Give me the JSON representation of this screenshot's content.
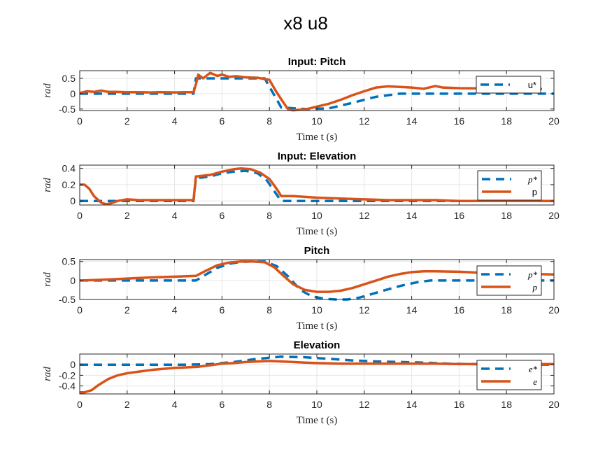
{
  "figure_title": "x8  u8",
  "colors": {
    "reference": "#0072BD",
    "actual": "#D95319"
  },
  "chart_data": [
    {
      "type": "line",
      "title": "Input: Pitch",
      "xlabel": "Time t (s)",
      "ylabel": "rad",
      "xlim": [
        0,
        20
      ],
      "ylim": [
        -0.55,
        0.75
      ],
      "xticks": [
        0,
        2,
        4,
        6,
        8,
        10,
        12,
        14,
        16,
        18,
        20
      ],
      "yticks": [
        0.5,
        0,
        -0.5
      ],
      "ytick_labels": [
        "0.5",
        "0",
        "-0.5"
      ],
      "grid": true,
      "legend_position": "top-right",
      "series": [
        {
          "name": "u*",
          "style": "dashed",
          "x": [
            0,
            4.8,
            4.9,
            7.8,
            8.5,
            9.5,
            10.5,
            11.5,
            12.5,
            13.5,
            15,
            20
          ],
          "y": [
            0,
            0,
            0.5,
            0.5,
            -0.45,
            -0.5,
            -0.48,
            -0.3,
            -0.1,
            0,
            0,
            0
          ]
        },
        {
          "name": "",
          "style": "solid",
          "x": [
            0,
            0.3,
            0.6,
            0.9,
            1.2,
            1.5,
            2,
            2.5,
            3,
            3.3,
            3.6,
            4,
            4.4,
            4.8,
            4.9,
            5.0,
            5.2,
            5.5,
            5.8,
            6.0,
            6.3,
            6.6,
            7,
            7.5,
            8,
            8.3,
            8.6,
            8.8,
            9.0,
            9.3,
            9.6,
            10,
            10.5,
            11,
            11.5,
            12,
            12.5,
            13,
            13.5,
            14,
            14.5,
            15,
            15.3,
            16,
            17,
            18,
            19,
            19.5
          ],
          "y": [
            0.02,
            0.08,
            0.06,
            0.1,
            0.06,
            0.06,
            0.05,
            0.05,
            0.04,
            0.05,
            0.05,
            0.04,
            0.05,
            0.05,
            0.3,
            0.62,
            0.5,
            0.68,
            0.58,
            0.62,
            0.55,
            0.57,
            0.53,
            0.52,
            0.45,
            0.05,
            -0.3,
            -0.52,
            -0.54,
            -0.52,
            -0.5,
            -0.42,
            -0.33,
            -0.2,
            -0.05,
            0.08,
            0.2,
            0.24,
            0.22,
            0.2,
            0.16,
            0.25,
            0.2,
            0.18,
            0.17,
            0.16,
            0.15,
            0.15
          ]
        }
      ]
    },
    {
      "type": "line",
      "title": "Input: Elevation",
      "xlabel": "Time t (s)",
      "ylabel": "rad",
      "xlim": [
        0,
        20
      ],
      "ylim": [
        -0.05,
        0.44
      ],
      "xticks": [
        0,
        2,
        4,
        6,
        8,
        10,
        12,
        14,
        16,
        18,
        20
      ],
      "yticks": [
        0.4,
        0.2,
        0
      ],
      "ytick_labels": [
        "0.4",
        "0.2",
        "0"
      ],
      "grid": true,
      "legend_position": "top-right",
      "series": [
        {
          "name": "p*",
          "style": "dashed",
          "x": [
            0,
            4.8,
            4.9,
            5.5,
            6.0,
            6.5,
            7.0,
            7.5,
            7.9,
            8.3,
            8.5,
            20
          ],
          "y": [
            0,
            0,
            0.28,
            0.3,
            0.34,
            0.36,
            0.37,
            0.34,
            0.25,
            0.08,
            0,
            0
          ]
        },
        {
          "name": "p",
          "style": "solid",
          "x": [
            0,
            0.2,
            0.4,
            0.6,
            0.9,
            1.1,
            1.3,
            1.6,
            2,
            2.5,
            3,
            3.5,
            4,
            4.8,
            4.9,
            5.5,
            6.0,
            6.5,
            6.8,
            7.2,
            7.6,
            8.0,
            8.3,
            8.5,
            9,
            9.5,
            10,
            11,
            12,
            13,
            14,
            15,
            16,
            17,
            18,
            19,
            20
          ],
          "y": [
            0.2,
            0.2,
            0.15,
            0.06,
            -0.02,
            -0.04,
            -0.03,
            0,
            0.02,
            0.01,
            0.01,
            0.01,
            0.01,
            0.01,
            0.3,
            0.32,
            0.36,
            0.39,
            0.4,
            0.39,
            0.35,
            0.27,
            0.15,
            0.06,
            0.06,
            0.05,
            0.04,
            0.03,
            0.02,
            0.01,
            0.01,
            0.01,
            0,
            0,
            0,
            0,
            0
          ]
        }
      ]
    },
    {
      "type": "line",
      "title": "Pitch",
      "xlabel": "Time t (s)",
      "ylabel": "rad",
      "xlim": [
        0,
        20
      ],
      "ylim": [
        -0.5,
        0.55
      ],
      "xticks": [
        0,
        2,
        4,
        6,
        8,
        10,
        12,
        14,
        16,
        18,
        20
      ],
      "yticks": [
        0.5,
        0,
        -0.5
      ],
      "ytick_labels": [
        "0.5",
        "0",
        "-0.5"
      ],
      "grid": true,
      "legend_position": "top-right",
      "series": [
        {
          "name": "p*",
          "style": "dashed",
          "x": [
            0,
            4.9,
            5.3,
            5.8,
            6.3,
            6.8,
            7.3,
            7.8,
            8.3,
            8.8,
            9.3,
            9.8,
            10.3,
            10.8,
            11.3,
            11.8,
            12.3,
            12.8,
            13.3,
            13.8,
            14.3,
            14.8,
            15.3,
            16,
            20
          ],
          "y": [
            0,
            0,
            0.15,
            0.33,
            0.44,
            0.49,
            0.5,
            0.5,
            0.38,
            0.1,
            -0.25,
            -0.42,
            -0.48,
            -0.5,
            -0.5,
            -0.45,
            -0.36,
            -0.27,
            -0.18,
            -0.1,
            -0.04,
            0,
            0,
            0,
            0
          ]
        },
        {
          "name": "p",
          "style": "solid",
          "x": [
            0,
            1,
            2,
            3,
            4,
            4.9,
            5.3,
            5.8,
            6.3,
            6.8,
            7.3,
            7.8,
            8.2,
            8.6,
            9.0,
            9.5,
            10.0,
            10.5,
            11.0,
            11.5,
            12,
            12.5,
            13,
            13.5,
            14,
            14.5,
            15,
            16,
            17,
            18,
            19,
            20
          ],
          "y": [
            0,
            0.02,
            0.05,
            0.08,
            0.1,
            0.12,
            0.25,
            0.4,
            0.47,
            0.5,
            0.5,
            0.48,
            0.35,
            0.12,
            -0.1,
            -0.25,
            -0.3,
            -0.3,
            -0.27,
            -0.2,
            -0.1,
            0,
            0.1,
            0.17,
            0.22,
            0.24,
            0.24,
            0.23,
            0.2,
            0.18,
            0.17,
            0.16
          ]
        }
      ]
    },
    {
      "type": "line",
      "title": "Elevation",
      "xlabel": "Time t (s)",
      "ylabel": "rad",
      "xlim": [
        0,
        20
      ],
      "ylim": [
        -0.55,
        0.2
      ],
      "xticks": [
        0,
        2,
        4,
        6,
        8,
        10,
        12,
        14,
        16,
        18,
        20
      ],
      "yticks": [
        0,
        -0.2,
        -0.4
      ],
      "ytick_labels": [
        "0",
        "-0.2",
        "-0.4"
      ],
      "grid": true,
      "legend_position": "top-right",
      "series": [
        {
          "name": "e*",
          "style": "dashed",
          "x": [
            0,
            4.5,
            5.5,
            6.5,
            7.5,
            8.5,
            9.5,
            10.5,
            11.5,
            12.5,
            13.5,
            14.5,
            15.5,
            16.5,
            20
          ],
          "y": [
            0,
            0,
            0.01,
            0.05,
            0.11,
            0.15,
            0.14,
            0.11,
            0.08,
            0.06,
            0.05,
            0.04,
            0.02,
            0.01,
            0
          ]
        },
        {
          "name": "e",
          "style": "solid",
          "x": [
            0,
            0.2,
            0.5,
            0.8,
            1.2,
            1.6,
            2,
            2.5,
            3,
            3.5,
            4,
            4.5,
            5,
            5.5,
            6,
            6.5,
            7,
            7.5,
            8,
            8.5,
            9,
            9.5,
            10,
            11,
            12,
            13,
            14,
            15,
            16,
            17,
            18,
            19,
            20
          ],
          "y": [
            -0.52,
            -0.52,
            -0.48,
            -0.38,
            -0.27,
            -0.2,
            -0.16,
            -0.13,
            -0.1,
            -0.08,
            -0.06,
            -0.05,
            -0.04,
            -0.01,
            0.02,
            0.03,
            0.05,
            0.06,
            0.07,
            0.06,
            0.05,
            0.04,
            0.03,
            0.02,
            0.02,
            0.02,
            0.02,
            0.02,
            0.01,
            0.01,
            0.01,
            0.01,
            0.01
          ]
        }
      ]
    }
  ]
}
